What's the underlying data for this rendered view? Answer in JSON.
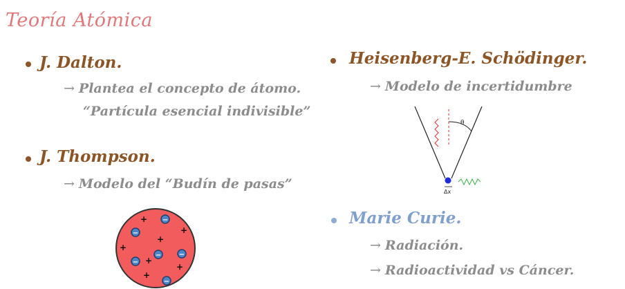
{
  "title": "Teoría Atómica",
  "colors": {
    "title": "#e0787a",
    "heading": "#8b5526",
    "curie": "#7f9fcc",
    "subtext": "#8c8c8c",
    "sphere": "#f25c5c",
    "electron": "#4f86c6"
  },
  "left": {
    "dalton": {
      "heading": "J. Dalton.",
      "line1": "Plantea el concepto de átomo.",
      "line2": "“Partícula esencial indivisible”"
    },
    "thompson": {
      "heading": "J. Thompson.",
      "line1": "Modelo del “Budín de pasas”",
      "diagram": {
        "plus_sign": "+",
        "minus_sign": "−"
      }
    }
  },
  "right": {
    "heisenberg": {
      "heading": "Heisenberg-E. Schödinger.",
      "line1": "Modelo de incertidumbre",
      "diagram": {
        "theta": "θ",
        "delta_x": "Δx"
      }
    },
    "curie": {
      "heading": "Marie Curie.",
      "line1": "Radiación.",
      "line2": "Radioactividad vs Cáncer."
    }
  },
  "arrow": "→"
}
